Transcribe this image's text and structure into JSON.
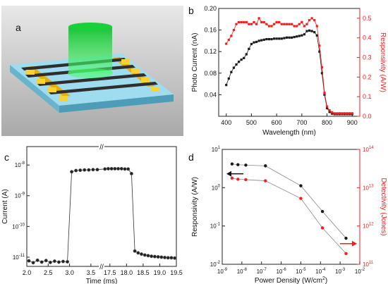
{
  "panels": {
    "a": "a",
    "b": "b",
    "c": "c",
    "d": "d"
  },
  "colors": {
    "black_series": "#1a1a1a",
    "red_series": "#ff1a1a",
    "gray_line": "#888888",
    "substrate": "#8ecfe6",
    "electrode": "#f2c417",
    "wire": "#333333",
    "light": "#22dd44"
  },
  "chart_data": [
    {
      "panel": "b",
      "type": "line",
      "xlabel": "Wavelength (nm)",
      "ylabel_left": "Photo Current (nA)",
      "ylabel_right": "Responsivity (A/W)",
      "xlim": [
        370,
        930
      ],
      "ylim_left": [
        0.0,
        0.2
      ],
      "ylim_right": [
        0.0,
        0.55
      ],
      "xticks": [
        "400",
        "500",
        "600",
        "700",
        "800",
        "900"
      ],
      "yticks_left": [
        "0.04",
        "0.08",
        "0.12",
        "0.16",
        "0.20"
      ],
      "yticks_right": [
        "0.0",
        "0.1",
        "0.2",
        "0.3",
        "0.4",
        "0.5"
      ],
      "series": [
        {
          "axis": "left",
          "x": [
            400,
            410,
            420,
            430,
            440,
            450,
            460,
            470,
            480,
            490,
            500,
            510,
            520,
            530,
            540,
            550,
            560,
            570,
            580,
            590,
            600,
            610,
            620,
            630,
            640,
            650,
            660,
            670,
            680,
            690,
            700,
            710,
            720,
            730,
            740,
            750,
            760,
            770,
            780,
            790,
            800,
            810,
            820,
            830,
            840,
            850,
            860,
            870,
            880,
            890,
            900
          ],
          "values": [
            0.058,
            0.07,
            0.082,
            0.09,
            0.096,
            0.101,
            0.105,
            0.108,
            0.115,
            0.125,
            0.134,
            0.137,
            0.138,
            0.14,
            0.141,
            0.142,
            0.143,
            0.143,
            0.143,
            0.144,
            0.144,
            0.144,
            0.144,
            0.145,
            0.146,
            0.146,
            0.146,
            0.147,
            0.148,
            0.149,
            0.15,
            0.152,
            0.158,
            0.159,
            0.158,
            0.156,
            0.15,
            0.12,
            0.08,
            0.04,
            0.015,
            0.008,
            0.005,
            0.004,
            0.004,
            0.004,
            0.004,
            0.004,
            0.004,
            0.004,
            0.004
          ]
        },
        {
          "axis": "right",
          "x": [
            400,
            410,
            420,
            430,
            440,
            450,
            460,
            470,
            480,
            490,
            500,
            510,
            520,
            530,
            540,
            550,
            560,
            570,
            580,
            590,
            600,
            610,
            620,
            630,
            640,
            650,
            660,
            670,
            680,
            690,
            700,
            710,
            720,
            730,
            740,
            750,
            760,
            770,
            780,
            790,
            800,
            810,
            820,
            830,
            840,
            850,
            860,
            870,
            880,
            890,
            900
          ],
          "values": [
            0.37,
            0.39,
            0.41,
            0.44,
            0.47,
            0.48,
            0.48,
            0.48,
            0.48,
            0.47,
            0.47,
            0.48,
            0.47,
            0.5,
            0.48,
            0.48,
            0.47,
            0.46,
            0.46,
            0.47,
            0.48,
            0.48,
            0.47,
            0.47,
            0.47,
            0.47,
            0.47,
            0.46,
            0.46,
            0.47,
            0.48,
            0.46,
            0.47,
            0.49,
            0.5,
            0.49,
            0.46,
            0.36,
            0.25,
            0.12,
            0.05,
            0.03,
            0.02,
            0.015,
            0.015,
            0.015,
            0.015,
            0.015,
            0.015,
            0.015,
            0.015
          ]
        }
      ]
    },
    {
      "panel": "c",
      "type": "scatter",
      "xlabel": "Time (ms)",
      "ylabel": "Current (A)",
      "y_scale": "log",
      "ylim_exp": [
        -11.3,
        -7.4
      ],
      "yticks_exp": [
        -8,
        -9,
        -10,
        -11
      ],
      "xticks": [
        "2.0",
        "2.5",
        "3.0",
        "3.5",
        "17.5",
        "18.0",
        "18.5",
        "19.0",
        "19.5"
      ],
      "axis_break": "//",
      "x_segments": [
        [
          2.0,
          3.75
        ],
        [
          17.25,
          19.5
        ]
      ],
      "series": [
        {
          "x": [
            2.05,
            2.15,
            2.25,
            2.35,
            2.45,
            2.55,
            2.65,
            2.75,
            2.85,
            2.95,
            3.05,
            3.15,
            3.25,
            3.35,
            3.45,
            3.55,
            3.65,
            17.35,
            17.45,
            17.55,
            17.65,
            17.75,
            17.85,
            17.95,
            18.05,
            18.15,
            18.25,
            18.35,
            18.45,
            18.55,
            18.65,
            18.75,
            18.85,
            18.95,
            19.05,
            19.15,
            19.25,
            19.35,
            19.45
          ],
          "values_exp": [
            -11.12,
            -11.18,
            -11.1,
            -11.16,
            -11.11,
            -11.17,
            -11.13,
            -11.16,
            -11.14,
            -11.15,
            -8.22,
            -8.18,
            -8.17,
            -8.16,
            -8.16,
            -8.15,
            -8.15,
            -8.13,
            -8.12,
            -8.12,
            -8.12,
            -8.12,
            -8.12,
            -8.13,
            -8.13,
            -8.28,
            -10.8,
            -10.86,
            -10.9,
            -10.93,
            -10.95,
            -10.97,
            -10.98,
            -10.99,
            -11.0,
            -11.01,
            -11.02,
            -11.02,
            -11.03
          ]
        }
      ]
    },
    {
      "panel": "d",
      "type": "line",
      "xlabel": "Power Density (W/cm",
      "xlabel_sup": "2",
      "xlabel_end": ")",
      "ylabel_left": "Responsivity (A/W)",
      "ylabel_right": "Detectivity (Jones)",
      "x_scale": "log",
      "xlim_exp": [
        -9,
        -2
      ],
      "xticks_exp": [
        -9,
        -8,
        -7,
        -6,
        -5,
        -4,
        -3,
        -2
      ],
      "ylim_left_exp": [
        -2,
        1
      ],
      "yticks_left_exp": [
        1,
        0,
        -1,
        -2
      ],
      "ylim_right_exp": [
        11,
        14
      ],
      "yticks_right_exp": [
        14,
        13,
        12,
        11
      ],
      "series": [
        {
          "axis": "left",
          "x_exp": [
            -8.5,
            -8.2,
            -7.8,
            -6.8,
            -5.0,
            -3.9,
            -2.7
          ],
          "values_exp": [
            0.62,
            0.6,
            0.59,
            0.57,
            0.05,
            -0.62,
            -1.32
          ]
        },
        {
          "axis": "right",
          "x_exp": [
            -8.5,
            -8.2,
            -7.8,
            -6.8,
            -5.0,
            -3.9,
            -2.7
          ],
          "values_exp": [
            13.25,
            13.22,
            13.21,
            13.18,
            12.72,
            11.95,
            11.28
          ]
        }
      ]
    }
  ]
}
